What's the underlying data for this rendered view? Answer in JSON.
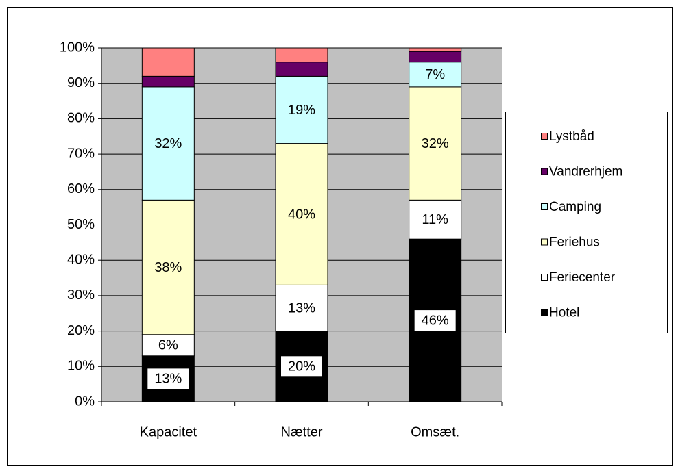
{
  "chart_data": {
    "type": "stacked_bar",
    "categories": [
      "Kapacitet",
      "Nætter",
      "Omsæt."
    ],
    "series": [
      {
        "name": "Hotel",
        "color": "#000000",
        "values": [
          13,
          20,
          46
        ],
        "value_labels": [
          "13%",
          "20%",
          "46%"
        ]
      },
      {
        "name": "Feriecenter",
        "color": "#ffffff",
        "values": [
          6,
          13,
          11
        ],
        "value_labels": [
          "6%",
          "13%",
          "11%"
        ]
      },
      {
        "name": "Feriehus",
        "color": "#ffffcc",
        "values": [
          38,
          40,
          32
        ],
        "value_labels": [
          "38%",
          "40%",
          "32%"
        ]
      },
      {
        "name": "Camping",
        "color": "#ccffff",
        "values": [
          32,
          19,
          7
        ],
        "value_labels": [
          "32%",
          "19%",
          "7%"
        ]
      },
      {
        "name": "Vandrerhjem",
        "color": "#660066",
        "values": [
          3,
          4,
          3
        ]
      },
      {
        "name": "Lystbåd",
        "color": "#ff8080",
        "values": [
          8,
          4,
          1
        ]
      }
    ],
    "ylim": [
      0,
      100
    ],
    "yticks": [
      {
        "value": 0,
        "label": "0%"
      },
      {
        "value": 10,
        "label": "10%"
      },
      {
        "value": 20,
        "label": "20%"
      },
      {
        "value": 30,
        "label": "30%"
      },
      {
        "value": 40,
        "label": "40%"
      },
      {
        "value": 50,
        "label": "50%"
      },
      {
        "value": 60,
        "label": "60%"
      },
      {
        "value": 70,
        "label": "70%"
      },
      {
        "value": 80,
        "label": "80%"
      },
      {
        "value": 90,
        "label": "90%"
      },
      {
        "value": 100,
        "label": "100%"
      }
    ],
    "grid": true,
    "legend": "right"
  }
}
